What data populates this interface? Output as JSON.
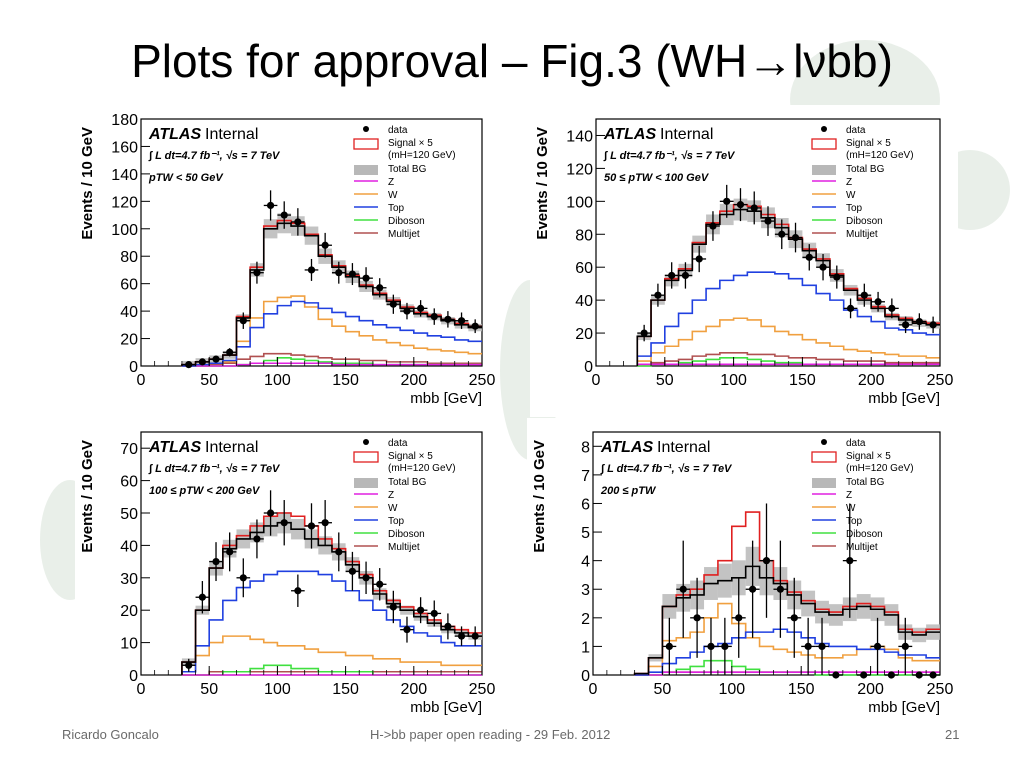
{
  "slide": {
    "title": "Plots for approval – Fig.3 (WH→lνbb)",
    "footer_author": "Ricardo Goncalo",
    "footer_center": "H->bb paper open reading - 29 Feb. 2012",
    "page_number": "21"
  },
  "legend_entries": [
    "data",
    "Signal × 5",
    "(mH=120 GeV)",
    "Total BG",
    "Z",
    "W",
    "Top",
    "Diboson",
    "Multijet"
  ],
  "colors": {
    "signal": "#e02020",
    "totalbg": "#b8b8b8",
    "z": "#e020e0",
    "w": "#f0a040",
    "top": "#2040e0",
    "diboson": "#40e040",
    "multijet": "#b05050",
    "data": "#000000"
  },
  "chart_data": [
    {
      "type": "histogram",
      "atlas_label": "ATLAS",
      "internal_label": "Internal",
      "lumi_label": "∫ L dt=4.7 fb⁻¹, √s = 7 TeV",
      "region_label": "pTW < 50 GeV",
      "xlabel": "mbb   [GeV]",
      "ylabel": "Events / 10 GeV",
      "xlim": [
        0,
        250
      ],
      "ylim": [
        0,
        180
      ],
      "xticks": [
        0,
        50,
        100,
        150,
        200,
        250
      ],
      "yticks": [
        0,
        20,
        40,
        60,
        80,
        100,
        120,
        140,
        160,
        180
      ],
      "bins": [
        30,
        40,
        50,
        60,
        70,
        80,
        90,
        100,
        110,
        120,
        130,
        140,
        150,
        160,
        170,
        180,
        190,
        200,
        210,
        220,
        230,
        240,
        250
      ],
      "total_bg": [
        1,
        3,
        5,
        8,
        35,
        70,
        100,
        104,
        102,
        95,
        80,
        72,
        65,
        58,
        52,
        47,
        42,
        38,
        36,
        33,
        30,
        28
      ],
      "signal": [
        1,
        3,
        5,
        8,
        36,
        72,
        102,
        106,
        104,
        96,
        81,
        73,
        66,
        59,
        53,
        48,
        43,
        39,
        37,
        34,
        31,
        29
      ],
      "top": [
        0,
        1,
        2,
        4,
        14,
        28,
        38,
        44,
        47,
        46,
        42,
        39,
        36,
        33,
        30,
        28,
        26,
        24,
        22,
        21,
        19,
        18
      ],
      "w": [
        0,
        1,
        2,
        3,
        18,
        35,
        47,
        50,
        51,
        43,
        34,
        29,
        25,
        22,
        19,
        17,
        15,
        13,
        12,
        11,
        10,
        9
      ],
      "z": [
        0,
        0,
        0,
        0,
        1,
        2,
        2,
        2,
        2,
        2,
        2,
        1,
        1,
        1,
        1,
        1,
        1,
        1,
        1,
        1,
        1,
        1
      ],
      "diboson": [
        0,
        0,
        0,
        0,
        1,
        2,
        4,
        6,
        5,
        4,
        3,
        2,
        2,
        2,
        1,
        1,
        1,
        1,
        1,
        1,
        1,
        1
      ],
      "multijet": [
        0,
        0,
        1,
        2,
        5,
        7,
        9,
        9,
        8,
        7,
        6,
        5,
        5,
        4,
        4,
        3,
        3,
        3,
        2,
        2,
        2,
        2
      ],
      "data_x": [
        35,
        45,
        55,
        65,
        75,
        85,
        95,
        105,
        115,
        125,
        135,
        145,
        155,
        165,
        175,
        185,
        195,
        205,
        215,
        225,
        235,
        245
      ],
      "data_y": [
        1,
        3,
        5,
        10,
        33,
        68,
        117,
        110,
        105,
        70,
        88,
        68,
        67,
        64,
        57,
        45,
        40,
        42,
        36,
        34,
        33,
        29
      ],
      "data_err": [
        1,
        2,
        2,
        3,
        6,
        8,
        11,
        10,
        10,
        8,
        9,
        8,
        8,
        8,
        7,
        7,
        6,
        6,
        6,
        6,
        6,
        5
      ]
    },
    {
      "type": "histogram",
      "atlas_label": "ATLAS",
      "internal_label": "Internal",
      "lumi_label": "∫ L dt=4.7 fb⁻¹, √s = 7 TeV",
      "region_label": "50 ≤ pTW < 100 GeV",
      "xlabel": "mbb   [GeV]",
      "ylabel": "Events / 10 GeV",
      "xlim": [
        0,
        250
      ],
      "ylim": [
        0,
        150
      ],
      "xticks": [
        0,
        50,
        100,
        150,
        200,
        250
      ],
      "yticks": [
        0,
        20,
        40,
        60,
        80,
        100,
        120,
        140
      ],
      "bins": [
        30,
        40,
        50,
        60,
        70,
        80,
        90,
        100,
        110,
        120,
        130,
        140,
        150,
        160,
        170,
        180,
        190,
        200,
        210,
        220,
        230,
        240,
        250
      ],
      "total_bg": [
        18,
        40,
        52,
        58,
        74,
        86,
        92,
        95,
        94,
        90,
        84,
        77,
        70,
        64,
        55,
        46,
        40,
        35,
        30,
        28,
        26,
        25
      ],
      "signal": [
        18,
        40,
        53,
        59,
        75,
        87,
        94,
        98,
        97,
        92,
        86,
        78,
        71,
        65,
        56,
        47,
        41,
        36,
        31,
        29,
        27,
        26
      ],
      "top": [
        6,
        14,
        24,
        32,
        40,
        47,
        52,
        55,
        57,
        57,
        56,
        53,
        49,
        44,
        40,
        34,
        30,
        27,
        23,
        22,
        20,
        19
      ],
      "w": [
        3,
        8,
        12,
        16,
        21,
        24,
        28,
        29,
        28,
        24,
        21,
        19,
        16,
        14,
        12,
        10,
        9,
        8,
        7,
        6,
        6,
        5
      ],
      "z": [
        1,
        1,
        1,
        1,
        1,
        1,
        1,
        1,
        1,
        1,
        1,
        1,
        1,
        1,
        1,
        1,
        1,
        1,
        1,
        1,
        1,
        1
      ],
      "diboson": [
        0,
        1,
        1,
        2,
        3,
        4,
        5,
        5,
        4,
        3,
        2,
        2,
        1,
        1,
        1,
        1,
        1,
        1,
        1,
        1,
        1,
        1
      ],
      "multijet": [
        1,
        2,
        3,
        4,
        6,
        7,
        8,
        8,
        7,
        7,
        6,
        5,
        5,
        4,
        4,
        3,
        3,
        3,
        2,
        2,
        2,
        2
      ],
      "data_x": [
        35,
        45,
        55,
        65,
        75,
        85,
        95,
        105,
        115,
        125,
        135,
        145,
        155,
        165,
        175,
        185,
        195,
        205,
        215,
        225,
        235,
        245
      ],
      "data_y": [
        20,
        43,
        55,
        55,
        65,
        85,
        100,
        98,
        96,
        88,
        80,
        78,
        66,
        60,
        54,
        35,
        43,
        39,
        35,
        25,
        27,
        25
      ],
      "data_err": [
        5,
        7,
        8,
        8,
        8,
        9,
        10,
        10,
        10,
        9,
        9,
        9,
        8,
        8,
        7,
        6,
        7,
        6,
        6,
        5,
        5,
        5
      ]
    },
    {
      "type": "histogram",
      "atlas_label": "ATLAS",
      "internal_label": "Internal",
      "lumi_label": "∫ L dt=4.7 fb⁻¹, √s = 7 TeV",
      "region_label": "100 ≤ pTW < 200 GeV",
      "xlabel": "mbb   [GeV]",
      "ylabel": "Events / 10 GeV",
      "xlim": [
        0,
        250
      ],
      "ylim": [
        0,
        75
      ],
      "xticks": [
        0,
        50,
        100,
        150,
        200,
        250
      ],
      "yticks": [
        0,
        10,
        20,
        30,
        40,
        50,
        60,
        70
      ],
      "bins": [
        30,
        40,
        50,
        60,
        70,
        80,
        90,
        100,
        110,
        120,
        130,
        140,
        150,
        160,
        170,
        180,
        190,
        200,
        210,
        220,
        230,
        240,
        250
      ],
      "total_bg": [
        4,
        20,
        33,
        39,
        42,
        44,
        46,
        47,
        45,
        42,
        40,
        38,
        34,
        30,
        25,
        22,
        20,
        18,
        16,
        14,
        13,
        12
      ],
      "signal": [
        4,
        20,
        33,
        40,
        43,
        46,
        49,
        50,
        49,
        46,
        42,
        39,
        35,
        31,
        26,
        23,
        21,
        19,
        17,
        15,
        14,
        13
      ],
      "top": [
        1,
        9,
        17,
        23,
        27,
        29,
        31,
        32,
        32,
        32,
        31,
        29,
        26,
        23,
        20,
        17,
        15,
        13,
        12,
        10,
        9,
        9
      ],
      "w": [
        1,
        6,
        10,
        12,
        12,
        11,
        10,
        9,
        9,
        8,
        7,
        7,
        6,
        6,
        5,
        5,
        4,
        4,
        4,
        3,
        3,
        3
      ],
      "z": [
        0,
        0,
        0,
        0,
        0,
        0,
        0,
        0,
        0,
        0,
        0,
        0,
        0,
        0,
        0,
        0,
        0,
        0,
        0,
        0,
        0,
        0
      ],
      "diboson": [
        0,
        0,
        0,
        1,
        1,
        2,
        3,
        3,
        2,
        2,
        1,
        1,
        1,
        1,
        0,
        0,
        0,
        0,
        0,
        0,
        0,
        0
      ],
      "multijet": [
        0,
        0,
        1,
        1,
        1,
        1,
        1,
        1,
        1,
        1,
        1,
        1,
        1,
        1,
        1,
        1,
        1,
        1,
        1,
        1,
        1,
        1
      ],
      "data_x": [
        35,
        45,
        55,
        65,
        75,
        85,
        95,
        105,
        115,
        125,
        135,
        145,
        155,
        165,
        175,
        185,
        195,
        205,
        215,
        225,
        235,
        245
      ],
      "data_y": [
        3,
        24,
        35,
        38,
        30,
        42,
        50,
        47,
        26,
        46,
        47,
        38,
        32,
        30,
        28,
        21,
        14,
        20,
        19,
        15,
        12,
        12
      ],
      "data_err": [
        2,
        5,
        6,
        6,
        6,
        6,
        7,
        7,
        5,
        7,
        7,
        6,
        6,
        5,
        5,
        5,
        4,
        4,
        4,
        4,
        3,
        3
      ]
    },
    {
      "type": "histogram",
      "atlas_label": "ATLAS",
      "internal_label": "Internal",
      "lumi_label": "∫ L dt=4.7 fb⁻¹, √s = 7 TeV",
      "region_label": "200 ≤ pTW",
      "xlabel": "mbb   [GeV]",
      "ylabel": "Events / 10 GeV",
      "xlim": [
        0,
        250
      ],
      "ylim": [
        0,
        8.5
      ],
      "xticks": [
        0,
        50,
        100,
        150,
        200,
        250
      ],
      "yticks": [
        0,
        1,
        2,
        3,
        4,
        5,
        6,
        7,
        8
      ],
      "bins": [
        30,
        40,
        50,
        60,
        70,
        80,
        90,
        100,
        110,
        120,
        130,
        140,
        150,
        160,
        170,
        180,
        190,
        200,
        210,
        220,
        230,
        240,
        250
      ],
      "total_bg": [
        0.05,
        0.6,
        2.4,
        2.7,
        2.8,
        3.2,
        3.3,
        3.4,
        3.8,
        3.4,
        3.2,
        2.8,
        2.5,
        2.2,
        2.1,
        2.3,
        2.4,
        2.3,
        2.1,
        1.5,
        1.4,
        1.5
      ],
      "signal": [
        0.05,
        0.6,
        2.4,
        2.8,
        3.0,
        3.5,
        4.0,
        5.2,
        5.7,
        4.0,
        3.3,
        2.9,
        2.6,
        2.3,
        2.2,
        2.4,
        2.5,
        2.4,
        2.2,
        1.6,
        1.5,
        1.6
      ],
      "top": [
        0,
        0.1,
        0.4,
        0.6,
        0.8,
        1.0,
        1.1,
        1.3,
        1.5,
        1.5,
        1.6,
        1.5,
        1.3,
        1.1,
        1.0,
        1.0,
        0.9,
        0.9,
        0.8,
        0.7,
        0.7,
        0.6
      ],
      "w": [
        0,
        0.3,
        1.2,
        1.3,
        1.5,
        2.0,
        2.5,
        1.8,
        1.3,
        1.0,
        0.9,
        0.8,
        0.7,
        0.6,
        0.6,
        0.7,
        0.9,
        1.0,
        0.9,
        0.6,
        0.5,
        0.5
      ],
      "z": [
        0,
        0,
        0.1,
        0.1,
        0.1,
        0.1,
        0.1,
        0.1,
        0.1,
        0.1,
        0.1,
        0.1,
        0.1,
        0.1,
        0.1,
        0.1,
        0.1,
        0.1,
        0.1,
        0.1,
        0.1,
        0.1
      ],
      "diboson": [
        0,
        0,
        0.1,
        0.2,
        0.3,
        0.5,
        0.5,
        0.3,
        0.2,
        0.1,
        0.1,
        0.1,
        0.1,
        0,
        0,
        0,
        0,
        0,
        0,
        0,
        0,
        0
      ],
      "multijet": [
        0,
        0,
        0.1,
        0.1,
        0.1,
        0.1,
        0.1,
        0.1,
        0.1,
        0.1,
        0.1,
        0.1,
        0.1,
        0.1,
        0.1,
        0.1,
        0.1,
        0.1,
        0.1,
        0.1,
        0.1,
        0.1
      ],
      "data_x": [
        55,
        65,
        75,
        85,
        95,
        105,
        115,
        125,
        135,
        145,
        155,
        165,
        175,
        185,
        195,
        205,
        215,
        225,
        235,
        245
      ],
      "data_y": [
        1,
        3,
        2,
        1,
        1,
        2,
        3,
        4,
        3,
        2,
        1,
        1,
        0,
        4,
        0,
        1,
        0,
        1,
        0,
        0
      ],
      "data_err": [
        1,
        1.7,
        1.4,
        1,
        1,
        1.4,
        1.7,
        2,
        1.7,
        1.4,
        1,
        1,
        0,
        2,
        0,
        1,
        0,
        1,
        0,
        0
      ]
    }
  ]
}
